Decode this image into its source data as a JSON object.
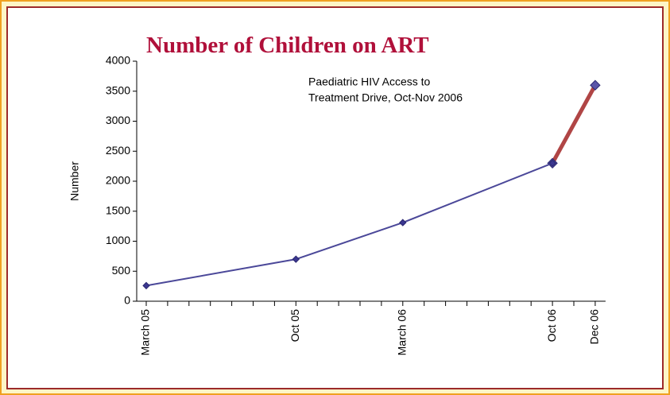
{
  "chart_data": {
    "type": "line",
    "title": "Number of Children on ART",
    "y_label": "Number",
    "annotation": [
      "Paediatric HIV Access to",
      "Treatment Drive, Oct-Nov 2006"
    ],
    "x": [
      "March 05",
      "Oct 05",
      "March 06",
      "Oct 06",
      "Dec 06"
    ],
    "series": [
      {
        "color": "#4b4899",
        "values": [
          260,
          700,
          1310,
          2300,
          null
        ]
      },
      {
        "color": "#b04545",
        "values": [
          null,
          null,
          null,
          2300,
          3600
        ]
      }
    ],
    "ylim": [
      0,
      4000
    ],
    "yticks": [
      0,
      500,
      1000,
      1500,
      2000,
      2500,
      3000,
      3500,
      4000
    ]
  }
}
